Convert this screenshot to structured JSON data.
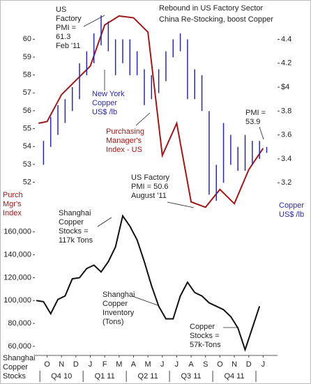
{
  "chart_data": [
    {
      "type": "line",
      "title": "Rebound in US Factory Sector",
      "subtitle": "China Re-Stocking, boost Copper",
      "xlim": [
        -0.35,
        16.5
      ],
      "ylim": [
        50.5,
        62
      ],
      "yticks": [
        52,
        53,
        54,
        55,
        56,
        57,
        58,
        59,
        60
      ],
      "y2lim": [
        2.98,
        4.7
      ],
      "y2ticks": [
        3.2,
        3.4,
        3.6,
        3.8,
        {
          "value": 4,
          "label": "$4"
        },
        4.2,
        4.4
      ],
      "series": [
        {
          "color": "#a01818",
          "x": [
            -0.1,
            0.5,
            1.5,
            2.5,
            3.5,
            4.5,
            5.5,
            6.5,
            7.5,
            8.5,
            9.5,
            10.5,
            11.5,
            12.5,
            13.5,
            14.5,
            15.5
          ],
          "values": [
            55.3,
            55.4,
            56.9,
            57.7,
            58.5,
            60.8,
            61.3,
            61.2,
            60.4,
            53.5,
            55.3,
            50.9,
            50.6,
            51.6,
            50.8,
            52.7,
            53.9
          ]
        },
        {
          "type": "range",
          "axis": "y2",
          "color": "#2a2aa8",
          "x": [
            0.25,
            0.75,
            1.25,
            1.75,
            2.25,
            2.75,
            3.25,
            3.75,
            4.25,
            4.75,
            5.25,
            5.75,
            6.25,
            6.75,
            7.25,
            7.75,
            8.25,
            8.75,
            9.25,
            9.75,
            10.25,
            10.75,
            11.25,
            11.75,
            12.25,
            12.75,
            13.25,
            13.75,
            14.25,
            14.75,
            15.25,
            15.75
          ],
          "low": [
            3.35,
            3.5,
            3.6,
            3.7,
            3.8,
            3.9,
            4.1,
            4.2,
            4.35,
            4.3,
            4.1,
            4.2,
            4.1,
            4.1,
            3.85,
            3.9,
            3.95,
            4.05,
            4.25,
            4.3,
            3.9,
            3.9,
            3.8,
            3.1,
            3.05,
            3.2,
            3.35,
            3.3,
            3.3,
            3.35,
            3.4,
            3.45
          ],
          "high": [
            3.55,
            3.75,
            3.85,
            3.9,
            4.0,
            4.2,
            4.3,
            4.45,
            4.6,
            4.55,
            4.4,
            4.4,
            4.4,
            4.3,
            4.15,
            4.1,
            4.15,
            4.3,
            4.4,
            4.45,
            4.4,
            4.15,
            4.1,
            3.8,
            3.35,
            3.7,
            3.6,
            3.5,
            3.6,
            3.55,
            3.55,
            3.5
          ]
        }
      ],
      "annotations": [
        {
          "lines": [
            "US",
            "Factory",
            "PMI =",
            "61.3",
            "Feb '11"
          ],
          "color": "#222222"
        },
        {
          "lines": [
            "New York",
            "Copper",
            "US$ /lb"
          ],
          "color": "#2a2aa8"
        },
        {
          "lines": [
            "Purchasing",
            "Manager's",
            "Index - US"
          ],
          "color": "#a01818"
        },
        {
          "lines": [
            "PMI =",
            "53.9"
          ],
          "color": "#222222"
        },
        {
          "lines": [
            "US Factory",
            "PMI = 50.6",
            "August '11"
          ],
          "color": "#222222"
        },
        {
          "lines": [
            "Purch",
            "Mgr's",
            "Index"
          ],
          "color": "#a01818"
        },
        {
          "lines": [
            "Copper",
            "US$ /lb"
          ],
          "color": "#2a2aa8"
        }
      ]
    },
    {
      "type": "line",
      "xlim": [
        -0.35,
        16.5
      ],
      "ylim": [
        52000,
        180000
      ],
      "yticks": [
        {
          "value": 60000,
          "label": "60,000"
        },
        {
          "value": 80000,
          "label": "80,000"
        },
        {
          "value": 100000,
          "label": "100,000"
        },
        {
          "value": 120000,
          "label": "120,000"
        },
        {
          "value": 140000,
          "label": "140,000"
        },
        {
          "value": 160000,
          "label": "160,000"
        }
      ],
      "xticks": [
        {
          "value": 0.5,
          "label": "O"
        },
        {
          "value": 1.5,
          "label": "N"
        },
        {
          "value": 2.5,
          "label": "D"
        },
        {
          "value": 3.5,
          "label": "J"
        },
        {
          "value": 4.5,
          "label": "F"
        },
        {
          "value": 5.5,
          "label": "M"
        },
        {
          "value": 6.5,
          "label": "A"
        },
        {
          "value": 7.5,
          "label": "M"
        },
        {
          "value": 8.5,
          "label": "J"
        },
        {
          "value": 9.5,
          "label": "J"
        },
        {
          "value": 10.5,
          "label": "A"
        },
        {
          "value": 11.5,
          "label": "S"
        },
        {
          "value": 12.5,
          "label": "O"
        },
        {
          "value": 13.5,
          "label": "N"
        },
        {
          "value": 14.5,
          "label": "D"
        },
        {
          "value": 15.5,
          "label": "J"
        }
      ],
      "xgroups": [
        "Q4 10",
        "Q1 11",
        "Q2 11",
        "Q3 11",
        "Q4 11"
      ],
      "series": [
        {
          "color": "#111111",
          "x": [
            -0.25,
            0.25,
            0.75,
            1.25,
            1.75,
            2.25,
            2.75,
            3.25,
            3.75,
            4.25,
            4.75,
            5.25,
            5.75,
            6.25,
            6.75,
            7.25,
            7.75,
            8.25,
            8.75,
            9.25,
            9.75,
            10.25,
            10.75,
            11.25,
            11.75,
            12.25,
            12.75,
            13.25,
            13.75,
            14.25,
            14.75,
            15.25
          ],
          "values": [
            100000,
            99000,
            88500,
            101000,
            104000,
            119000,
            120000,
            128000,
            131000,
            125000,
            134000,
            147000,
            174000,
            165000,
            153000,
            134000,
            113000,
            95000,
            84000,
            84000,
            104000,
            116000,
            107000,
            104000,
            98000,
            95000,
            92000,
            86000,
            76000,
            57000,
            76000,
            95000
          ]
        }
      ],
      "annotations": [
        {
          "lines": [
            "Shanghai",
            "Copper",
            "Stocks =",
            "117k Tons"
          ],
          "color": "#222222"
        },
        {
          "lines": [
            "Shanghai",
            "Copper",
            "Inventory",
            "(Tons)"
          ],
          "color": "#222222"
        },
        {
          "lines": [
            "Copper",
            "Stocks =",
            "57k-Tons"
          ],
          "color": "#222222"
        },
        {
          "lines": [
            "Shanghai",
            "Copper",
            "Stocks"
          ],
          "color": "#222222"
        }
      ]
    }
  ]
}
